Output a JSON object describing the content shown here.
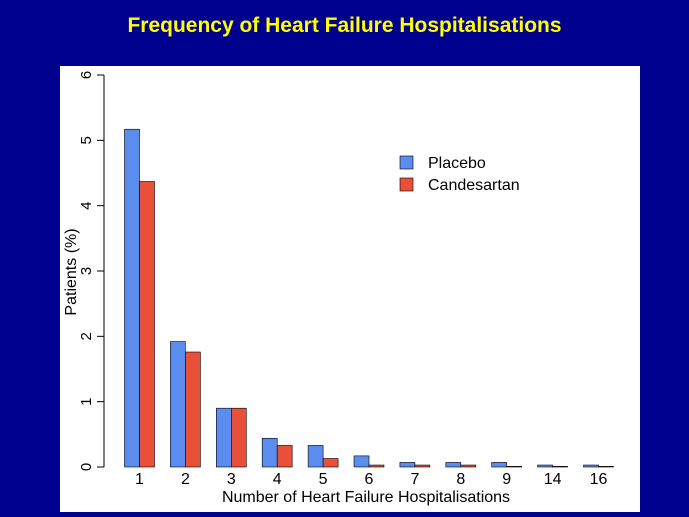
{
  "slide": {
    "title": "Frequency of Heart Failure Hospitalisations"
  },
  "chart_data": {
    "type": "bar",
    "categories": [
      "1",
      "2",
      "3",
      "4",
      "5",
      "6",
      "7",
      "8",
      "9",
      "14",
      "16"
    ],
    "series": [
      {
        "name": "Placebo",
        "color": "#5b8def",
        "values": [
          5.17,
          1.92,
          0.9,
          0.44,
          0.33,
          0.17,
          0.07,
          0.07,
          0.07,
          0.03,
          0.03
        ]
      },
      {
        "name": "Candesartan",
        "color": "#e8503a",
        "values": [
          4.37,
          1.76,
          0.9,
          0.33,
          0.13,
          0.03,
          0.03,
          0.03,
          0.01,
          0.01,
          0.01
        ]
      }
    ],
    "xlabel": "Number of Heart Failure Hospitalisations",
    "ylabel": "Patients (%)",
    "ylim": [
      0,
      6
    ],
    "yticks": [
      "0",
      "1",
      "2",
      "3",
      "4",
      "5",
      "6"
    ],
    "legend_position": "top-right",
    "grid": false
  }
}
